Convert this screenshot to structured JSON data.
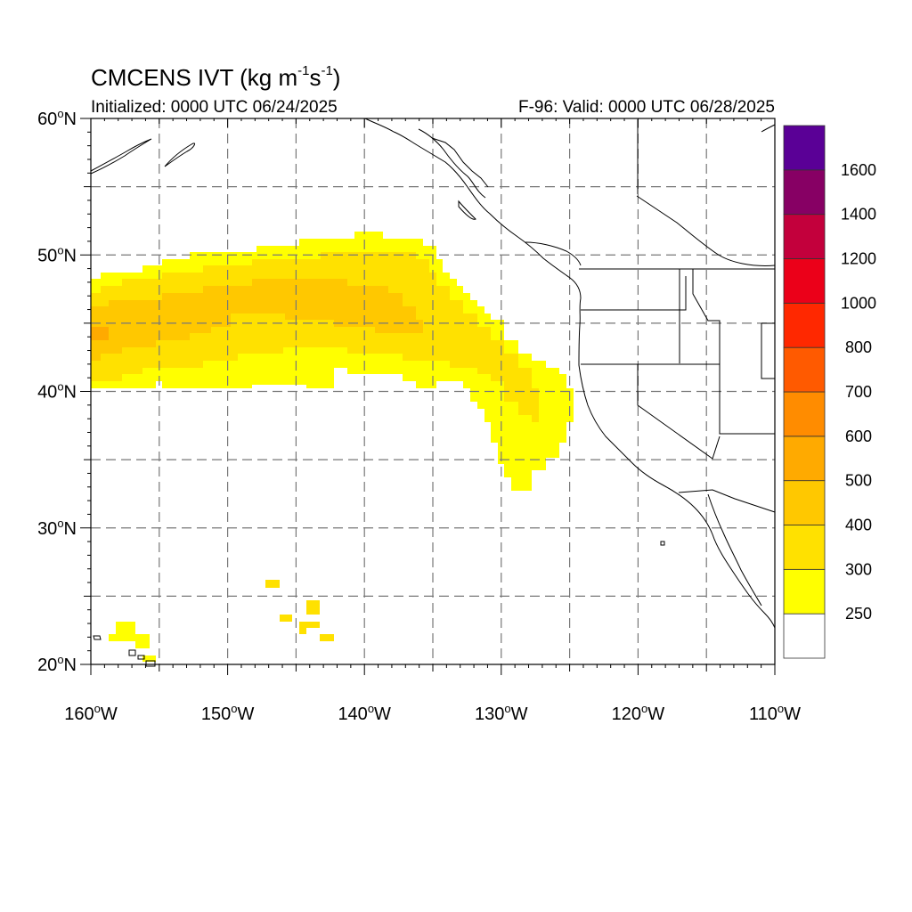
{
  "title": {
    "base": "CMCENS IVT (kg m",
    "exp1": "-1",
    "mid": "s",
    "exp2": "-1",
    "end": ")"
  },
  "initialized": "Initialized: 0000 UTC 06/24/2025",
  "valid": "F-96: Valid: 0000 UTC 06/28/2025",
  "map": {
    "lon_range": [
      -160,
      -110
    ],
    "lat_range": [
      20,
      60
    ],
    "lon_ticks": [
      {
        "lon": -160,
        "deg": "160",
        "hemi": "W"
      },
      {
        "lon": -150,
        "deg": "150",
        "hemi": "W"
      },
      {
        "lon": -140,
        "deg": "140",
        "hemi": "W"
      },
      {
        "lon": -130,
        "deg": "130",
        "hemi": "W"
      },
      {
        "lon": -120,
        "deg": "120",
        "hemi": "W"
      },
      {
        "lon": -110,
        "deg": "110",
        "hemi": "W"
      }
    ],
    "lat_ticks": [
      {
        "lat": 60,
        "deg": "60",
        "hemi": "N"
      },
      {
        "lat": 50,
        "deg": "50",
        "hemi": "N"
      },
      {
        "lat": 40,
        "deg": "40",
        "hemi": "N"
      },
      {
        "lat": 30,
        "deg": "30",
        "hemi": "N"
      },
      {
        "lat": 20,
        "deg": "20",
        "hemi": "N"
      }
    ],
    "grid": "dashed, every 5 degrees"
  },
  "colorbar": {
    "labels": [
      "250",
      "300",
      "400",
      "500",
      "600",
      "700",
      "800",
      "1000",
      "1200",
      "1400",
      "1600"
    ],
    "colors": [
      "#ffffff",
      "#ffff00",
      "#ffe100",
      "#ffc800",
      "#ffaa00",
      "#ff8c00",
      "#ff5a00",
      "#ff2800",
      "#eb0019",
      "#c3003c",
      "#870064",
      "#5a0096"
    ]
  },
  "ivt_colors": {
    "c250": "#ffff00",
    "c300": "#ffe100",
    "c400": "#ffc800",
    "c500": "#ffaa00"
  }
}
